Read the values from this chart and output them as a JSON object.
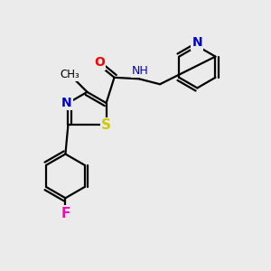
{
  "background_color": "#ebebeb",
  "atom_colors": {
    "C": "#000000",
    "N": "#0000cc",
    "O": "#ff0000",
    "S": "#cccc00",
    "F": "#ff00bb",
    "H": "#555555"
  },
  "bond_color": "#000000",
  "bond_width": 1.6,
  "font_size_atoms": 10,
  "font_size_small": 8.5
}
